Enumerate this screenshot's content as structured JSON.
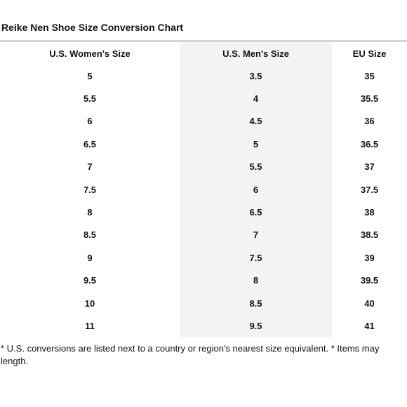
{
  "title": "Reike Nen Shoe Size Conversion Chart",
  "columns": [
    "U.S. Women's Size",
    "U.S. Men's Size",
    "EU Size"
  ],
  "rows": [
    [
      "5",
      "3.5",
      "35"
    ],
    [
      "5.5",
      "4",
      "35.5"
    ],
    [
      "6",
      "4.5",
      "36"
    ],
    [
      "6.5",
      "5",
      "36.5"
    ],
    [
      "7",
      "5.5",
      "37"
    ],
    [
      "7.5",
      "6",
      "37.5"
    ],
    [
      "8",
      "6.5",
      "38"
    ],
    [
      "8.5",
      "7",
      "38.5"
    ],
    [
      "9",
      "7.5",
      "39"
    ],
    [
      "9.5",
      "8",
      "39.5"
    ],
    [
      "10",
      "8.5",
      "40"
    ],
    [
      "11",
      "9.5",
      "41"
    ]
  ],
  "footnote": {
    "line1": "* U.S. conversions are listed next to a country or region's nearest size equivalent. * Items may",
    "line2": "length."
  },
  "colors": {
    "shaded_column": "#f3f3f3",
    "rule": "#d4d4d4"
  }
}
